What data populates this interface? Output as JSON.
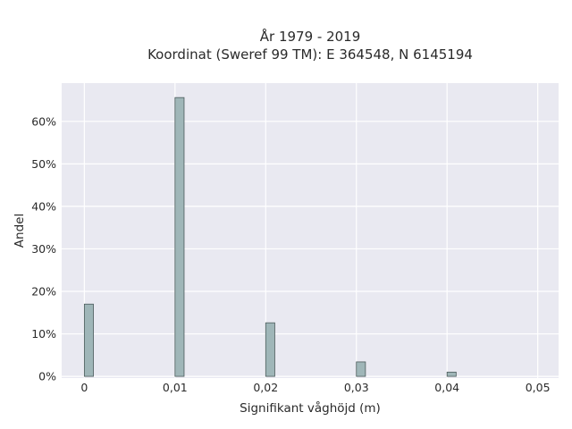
{
  "chart_data": {
    "type": "bar",
    "title_lines": [
      "År 1979 - 2019",
      "Koordinat (Sweref 99 TM): E 364548, N 6145194"
    ],
    "xlabel": "Signifikant våghöjd (m)",
    "ylabel": "Andel",
    "x_tick_values": [
      0,
      0.01,
      0.02,
      0.03,
      0.04,
      0.05
    ],
    "x_tick_labels": [
      "0",
      "0,01",
      "0,02",
      "0,03",
      "0,04",
      "0,05"
    ],
    "y_tick_values": [
      0,
      10,
      20,
      30,
      40,
      50,
      60
    ],
    "y_tick_labels": [
      "0%",
      "10%",
      "20%",
      "30%",
      "40%",
      "50%",
      "60%"
    ],
    "xlim": [
      -0.0025,
      0.0523
    ],
    "ylim": [
      -0.4,
      69
    ],
    "bar_width": 0.001,
    "bars": [
      {
        "x": 0.0,
        "value": 17.0
      },
      {
        "x": 0.01,
        "value": 65.6
      },
      {
        "x": 0.02,
        "value": 12.6
      },
      {
        "x": 0.03,
        "value": 3.4
      },
      {
        "x": 0.04,
        "value": 1.0
      }
    ],
    "bar_color": "#9fb6b8",
    "plot_background": "#e9e9f1",
    "grid": true
  }
}
